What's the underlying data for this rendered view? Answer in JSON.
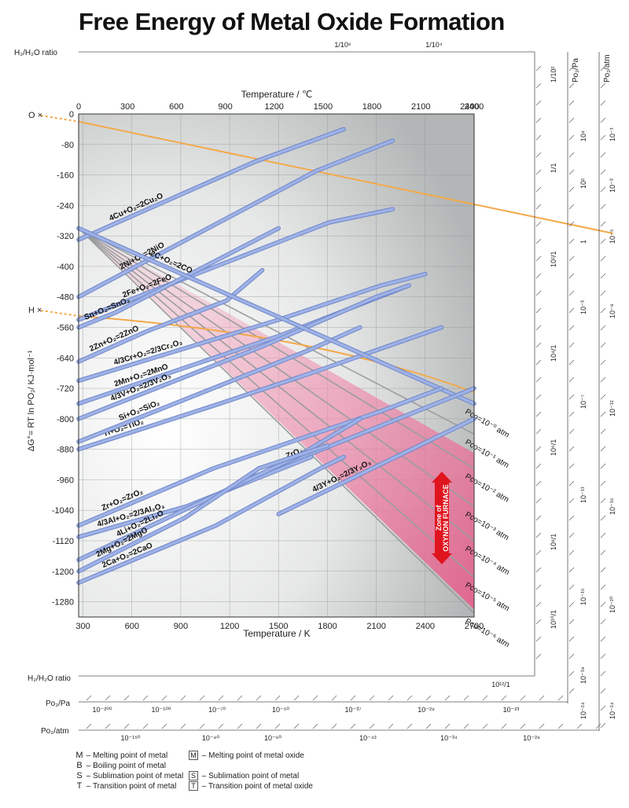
{
  "title": "Free Energy of Metal Oxide Formation",
  "chart_data": {
    "type": "line",
    "title": "Free Energy of Metal Oxide Formation",
    "xlabel_top": "Temperature / ℃",
    "xlabel_bottom": "Temperature / K",
    "ylabel": "ΔG°= RT ln PO₂/ KJ·mol⁻¹",
    "x_ticks_C": [
      "0",
      "300",
      "600",
      "900",
      "1200",
      "1500",
      "1800",
      "2100",
      "2400"
    ],
    "x_ticks_K": [
      "300",
      "600",
      "900",
      "1200",
      "1500",
      "1800",
      "2100",
      "2400",
      "2700"
    ],
    "y_ticks": [
      "0",
      "-80",
      "-160",
      "-240",
      "-320",
      "-400",
      "-480",
      "-560",
      "-640",
      "-720",
      "-800",
      "-880",
      "-960",
      "-1040",
      "-1120",
      "-1200",
      "-1280"
    ],
    "xlim_K": [
      273,
      2700
    ],
    "ylim": [
      0,
      -1320
    ],
    "extra_top_C_tick": "2400",
    "series": [
      {
        "name": "4Cu+O₂=2Cu₂O",
        "x": [
          273,
          1357,
          1900
        ],
        "y": [
          -330,
          -125,
          -40
        ]
      },
      {
        "name": "2Ni+O₂=2NiO",
        "x": [
          273,
          1728,
          2200
        ],
        "y": [
          -480,
          -150,
          -70
        ]
      },
      {
        "name": "2Fe+O₂=2FeO",
        "x": [
          273,
          1808,
          2200
        ],
        "y": [
          -540,
          -285,
          -250
        ]
      },
      {
        "name": "Sn+O₂=SnO₂",
        "x": [
          273,
          505,
          1500
        ],
        "y": [
          -560,
          -520,
          -300
        ]
      },
      {
        "name": "2Zn+O₂=2ZnO",
        "x": [
          273,
          693,
          1180,
          1400
        ],
        "y": [
          -650,
          -570,
          -490,
          -410
        ]
      },
      {
        "name": "4/3Cr+O₂=2/3Cr₂O₃",
        "x": [
          273,
          1500,
          2130,
          2400
        ],
        "y": [
          -700,
          -540,
          -450,
          -420
        ]
      },
      {
        "name": "2Mn+O₂=2MnO",
        "x": [
          273,
          1519,
          2000,
          2300
        ],
        "y": [
          -760,
          -580,
          -500,
          -450
        ]
      },
      {
        "name": "4/3V+O₂=2/3V₂O₃",
        "x": [
          273,
          1400,
          2100,
          2300
        ],
        "y": [
          -800,
          -610,
          -480,
          -450
        ]
      },
      {
        "name": "Ti+O₂=TiO₂",
        "x": [
          273,
          1140,
          1700,
          2500
        ],
        "y": [
          -880,
          -760,
          -680,
          -560
        ]
      },
      {
        "name": "Si+O₂=SiO₂",
        "x": [
          273,
          1685,
          2000
        ],
        "y": [
          -860,
          -620,
          -560
        ]
      },
      {
        "name": "2C+O₂=2CO",
        "x": [
          273,
          2700
        ],
        "y": [
          -300,
          -760
        ]
      },
      {
        "name": "ZrO₂",
        "x": [
          1300,
          2700
        ],
        "y": [
          -960,
          -720
        ]
      },
      {
        "name": "4/3Y+O₂=2/3Y₂O₃",
        "x": [
          1500,
          2700
        ],
        "y": [
          -1050,
          -800
        ]
      },
      {
        "name": "Zr+O₂=ZrO₂",
        "x": [
          273,
          1100,
          2128,
          2500
        ],
        "y": [
          -1080,
          -930,
          -780,
          -720
        ]
      },
      {
        "name": "4/3Al+O₂=2/3Al₂O₃",
        "x": [
          273,
          933,
          1700
        ],
        "y": [
          -1110,
          -1030,
          -900
        ]
      },
      {
        "name": "4Li+O₂=2Li₂O",
        "x": [
          273,
          1610,
          2000
        ],
        "y": [
          -1170,
          -900,
          -800
        ]
      },
      {
        "name": "2Mg+O₂=2MgO",
        "x": [
          273,
          923,
          1380,
          1800
        ],
        "y": [
          -1200,
          -1060,
          -930,
          -870
        ]
      },
      {
        "name": "2Ca+O₂=2CaO",
        "x": [
          273,
          1115,
          1757,
          1900
        ],
        "y": [
          -1230,
          -1080,
          -930,
          -900
        ]
      }
    ],
    "pco_lines": [
      {
        "label": "Pco=10⁻⁰ atm",
        "exp": "0"
      },
      {
        "label": "Pco=10⁻¹ atm",
        "exp": "-1"
      },
      {
        "label": "Pco=10⁻² atm",
        "exp": "-2"
      },
      {
        "label": "Pco=10⁻³ atm",
        "exp": "-3"
      },
      {
        "label": "Pco=10⁻⁴ atm",
        "exp": "-4"
      },
      {
        "label": "Pco=10⁻⁵ atm",
        "exp": "-5"
      },
      {
        "label": "Pco=10⁻⁶ atm",
        "exp": "-6"
      }
    ],
    "pco_prefix": "P",
    "pco_sub": "co",
    "annotations": {
      "zone_line1": "Zone of",
      "zone_line2": "OXYNON FURNACE",
      "o_marker": "O",
      "h_marker": "H",
      "h2h2o_label": "H₂/H₂O ratio",
      "po2_pa_label": "Po₂/Pa",
      "po2_atm_label": "Po₂/atm"
    },
    "h2h2o_top_ticks": [
      "1/10⁶",
      "1/10⁴"
    ],
    "h2h2o_right_ticks": [
      "1/10²",
      "1/1",
      "10²/1",
      "10⁴/1",
      "10⁶/1",
      "10⁸/1",
      "10¹⁰/1"
    ],
    "h2h2o_bottom_ticks": [
      "10¹²/1"
    ],
    "po2_pa_right_ticks": [
      "10⁴",
      "10²",
      "1",
      "10⁻³",
      "10⁻⁷",
      "10⁻¹¹",
      "10⁻¹⁵",
      "10⁻¹⁹",
      "10⁻²⁴"
    ],
    "po2_atm_right_ticks": [
      "10⁻¹",
      "10⁻³",
      "10⁻⁵",
      "10⁻⁸",
      "10⁻¹²",
      "10⁻¹⁶",
      "10⁻²⁰",
      "10⁻²⁴"
    ],
    "po2_pa_bottom_ticks": [
      "10⁻²⁰⁰",
      "10⁻¹⁰⁰",
      "10⁻⁷⁰",
      "10⁻⁵⁰",
      "10⁻³⁷",
      "10⁻²⁹",
      "10⁻²³"
    ],
    "po2_atm_bottom_ticks": [
      "10⁻¹⁵⁰",
      "10⁻⁸⁰",
      "10⁻⁶⁰",
      "10⁻⁴²",
      "10⁻³⁴",
      "10⁻²⁸"
    ]
  },
  "legend": [
    {
      "symbol": "M",
      "boxed": false,
      "text": "– Melting point of metal"
    },
    {
      "symbol": "B",
      "boxed": false,
      "text": "– Boiling point of metal"
    },
    {
      "symbol": "S",
      "boxed": false,
      "text": "– Sublimation point of metal"
    },
    {
      "symbol": "T",
      "boxed": false,
      "text": "– Transition point of metal"
    },
    {
      "symbol": "M",
      "boxed": true,
      "text": "– Melting point of metal oxide"
    },
    {
      "symbol": "S",
      "boxed": true,
      "text": "– Sublimation point of metal"
    },
    {
      "symbol": "T",
      "boxed": true,
      "text": "– Transition point of metal oxide"
    }
  ],
  "colors": {
    "metal_line": "#9fb2e6",
    "metal_line_edge": "#6f86c8",
    "orange": "#f3a94a",
    "zone": "#e9648f",
    "arrow": "#e0141e",
    "plot_bg_light": "#f7f7f7",
    "plot_bg_dark": "#b9bcbc"
  }
}
